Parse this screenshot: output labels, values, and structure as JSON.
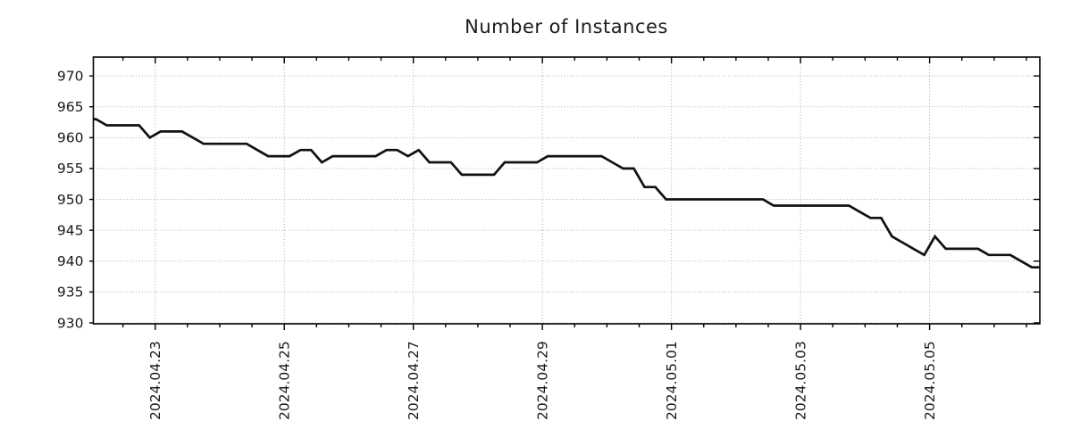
{
  "page": {
    "background": "#ffffff"
  },
  "chart_data": {
    "type": "line",
    "title": "Number of Instances",
    "xlabel": "",
    "ylabel": "",
    "grid": true,
    "legend_position": "none",
    "line_color": "#111111",
    "grid_color": "#ababab",
    "axis_color": "#000000",
    "text_color": "#1a1a1a",
    "ylim": [
      929.85,
      973.05
    ],
    "y_ticks": [
      930,
      935,
      940,
      945,
      950,
      955,
      960,
      965,
      970
    ],
    "x_domain": [
      "2024-04-22T01:00",
      "2024-05-06T17:00"
    ],
    "x_minor_tick_hours": 12,
    "x_major_ticks": [
      {
        "date": "2024-04-23T00:00",
        "label": "2024.04.23"
      },
      {
        "date": "2024-04-25T00:00",
        "label": "2024.04.25"
      },
      {
        "date": "2024-04-27T00:00",
        "label": "2024.04.27"
      },
      {
        "date": "2024-04-29T00:00",
        "label": "2024.04.29"
      },
      {
        "date": "2024-05-01T00:00",
        "label": "2024.05.01"
      },
      {
        "date": "2024-05-03T00:00",
        "label": "2024.05.03"
      },
      {
        "date": "2024-05-05T00:00",
        "label": "2024.05.05"
      }
    ],
    "series": [
      {
        "name": "instances",
        "points": [
          [
            "2024-04-22T01:00",
            963
          ],
          [
            "2024-04-22T02:00",
            963
          ],
          [
            "2024-04-22T06:00",
            962
          ],
          [
            "2024-04-22T10:00",
            962
          ],
          [
            "2024-04-22T14:00",
            962
          ],
          [
            "2024-04-22T18:00",
            962
          ],
          [
            "2024-04-22T22:00",
            960
          ],
          [
            "2024-04-23T02:00",
            961
          ],
          [
            "2024-04-23T06:00",
            961
          ],
          [
            "2024-04-23T10:00",
            961
          ],
          [
            "2024-04-23T14:00",
            960
          ],
          [
            "2024-04-23T18:00",
            959
          ],
          [
            "2024-04-23T22:00",
            959
          ],
          [
            "2024-04-24T02:00",
            959
          ],
          [
            "2024-04-24T06:00",
            959
          ],
          [
            "2024-04-24T10:00",
            959
          ],
          [
            "2024-04-24T14:00",
            958
          ],
          [
            "2024-04-24T18:00",
            957
          ],
          [
            "2024-04-24T22:00",
            957
          ],
          [
            "2024-04-25T02:00",
            957
          ],
          [
            "2024-04-25T06:00",
            958
          ],
          [
            "2024-04-25T10:00",
            958
          ],
          [
            "2024-04-25T14:00",
            956
          ],
          [
            "2024-04-25T18:00",
            957
          ],
          [
            "2024-04-25T22:00",
            957
          ],
          [
            "2024-04-26T02:00",
            957
          ],
          [
            "2024-04-26T06:00",
            957
          ],
          [
            "2024-04-26T10:00",
            957
          ],
          [
            "2024-04-26T14:00",
            958
          ],
          [
            "2024-04-26T18:00",
            958
          ],
          [
            "2024-04-26T22:00",
            957
          ],
          [
            "2024-04-27T02:00",
            958
          ],
          [
            "2024-04-27T06:00",
            956
          ],
          [
            "2024-04-27T10:00",
            956
          ],
          [
            "2024-04-27T14:00",
            956
          ],
          [
            "2024-04-27T18:00",
            954
          ],
          [
            "2024-04-27T22:00",
            954
          ],
          [
            "2024-04-28T02:00",
            954
          ],
          [
            "2024-04-28T06:00",
            954
          ],
          [
            "2024-04-28T10:00",
            956
          ],
          [
            "2024-04-28T14:00",
            956
          ],
          [
            "2024-04-28T18:00",
            956
          ],
          [
            "2024-04-28T22:00",
            956
          ],
          [
            "2024-04-29T02:00",
            957
          ],
          [
            "2024-04-29T06:00",
            957
          ],
          [
            "2024-04-29T10:00",
            957
          ],
          [
            "2024-04-29T14:00",
            957
          ],
          [
            "2024-04-29T18:00",
            957
          ],
          [
            "2024-04-29T22:00",
            957
          ],
          [
            "2024-04-30T02:00",
            956
          ],
          [
            "2024-04-30T06:00",
            955
          ],
          [
            "2024-04-30T10:00",
            955
          ],
          [
            "2024-04-30T14:00",
            952
          ],
          [
            "2024-04-30T18:00",
            952
          ],
          [
            "2024-04-30T22:00",
            950
          ],
          [
            "2024-05-01T02:00",
            950
          ],
          [
            "2024-05-01T06:00",
            950
          ],
          [
            "2024-05-01T10:00",
            950
          ],
          [
            "2024-05-01T14:00",
            950
          ],
          [
            "2024-05-01T18:00",
            950
          ],
          [
            "2024-05-01T22:00",
            950
          ],
          [
            "2024-05-02T02:00",
            950
          ],
          [
            "2024-05-02T06:00",
            950
          ],
          [
            "2024-05-02T10:00",
            950
          ],
          [
            "2024-05-02T14:00",
            949
          ],
          [
            "2024-05-02T18:00",
            949
          ],
          [
            "2024-05-02T22:00",
            949
          ],
          [
            "2024-05-03T02:00",
            949
          ],
          [
            "2024-05-03T06:00",
            949
          ],
          [
            "2024-05-03T10:00",
            949
          ],
          [
            "2024-05-03T14:00",
            949
          ],
          [
            "2024-05-03T18:00",
            949
          ],
          [
            "2024-05-03T22:00",
            948
          ],
          [
            "2024-05-04T02:00",
            947
          ],
          [
            "2024-05-04T06:00",
            947
          ],
          [
            "2024-05-04T10:00",
            944
          ],
          [
            "2024-05-04T14:00",
            943
          ],
          [
            "2024-05-04T18:00",
            942
          ],
          [
            "2024-05-04T22:00",
            941
          ],
          [
            "2024-05-05T02:00",
            944
          ],
          [
            "2024-05-05T06:00",
            942
          ],
          [
            "2024-05-05T10:00",
            942
          ],
          [
            "2024-05-05T14:00",
            942
          ],
          [
            "2024-05-05T18:00",
            942
          ],
          [
            "2024-05-05T22:00",
            941
          ],
          [
            "2024-05-06T02:00",
            941
          ],
          [
            "2024-05-06T06:00",
            941
          ],
          [
            "2024-05-06T10:00",
            940
          ],
          [
            "2024-05-06T14:00",
            939
          ],
          [
            "2024-05-06T17:00",
            939
          ]
        ]
      }
    ]
  }
}
